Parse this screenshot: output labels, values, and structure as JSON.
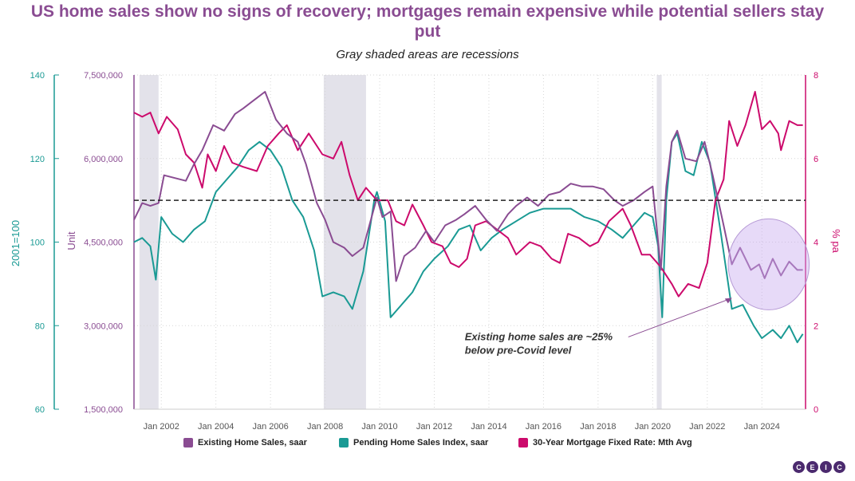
{
  "title": "US home sales show no signs of recovery; mortgages remain expensive while potential sellers stay put",
  "subtitle": "Gray shaded areas are recessions",
  "logo": [
    "C",
    "E",
    "I",
    "C"
  ],
  "chart_data": {
    "type": "line",
    "x_ticks": [
      "Jan 2002",
      "Jan 2004",
      "Jan 2006",
      "Jan 2008",
      "Jan 2010",
      "Jan 2012",
      "Jan 2014",
      "Jan 2016",
      "Jan 2018",
      "Jan 2020",
      "Jan 2022",
      "Jan 2024"
    ],
    "x_range": [
      2001.0,
      2025.6
    ],
    "axes": {
      "index": {
        "label": "2001=100",
        "ticks": [
          "60",
          "80",
          "100",
          "120",
          "140"
        ],
        "range": [
          60,
          140
        ],
        "color": "#1a9a94"
      },
      "unit": {
        "label": "Unit",
        "ticks": [
          "1,500,000",
          "3,000,000",
          "4,500,000",
          "6,000,000",
          "7,500,000"
        ],
        "range": [
          1500000,
          7500000
        ],
        "color": "#8a4c92"
      },
      "rate": {
        "label": "% pa",
        "ticks": [
          "0",
          "2",
          "4",
          "6",
          "8"
        ],
        "range": [
          0,
          8
        ],
        "color": "#cc0a6c"
      }
    },
    "recessions": [
      [
        2001.2,
        2001.9
      ],
      [
        2007.95,
        2009.5
      ],
      [
        2020.15,
        2020.33
      ]
    ],
    "reference_line": {
      "value": 5250000,
      "axis": "unit",
      "style": "dashed"
    },
    "series": [
      {
        "name": "Existing Home Sales, saar",
        "axis": "unit",
        "color": "#8a4c92",
        "points": [
          [
            2001.0,
            4900000
          ],
          [
            2001.3,
            5200000
          ],
          [
            2001.6,
            5150000
          ],
          [
            2001.9,
            5200000
          ],
          [
            2002.1,
            5700000
          ],
          [
            2002.5,
            5650000
          ],
          [
            2002.9,
            5600000
          ],
          [
            2003.2,
            5900000
          ],
          [
            2003.5,
            6150000
          ],
          [
            2003.9,
            6600000
          ],
          [
            2004.3,
            6500000
          ],
          [
            2004.7,
            6800000
          ],
          [
            2005.0,
            6900000
          ],
          [
            2005.4,
            7050000
          ],
          [
            2005.8,
            7200000
          ],
          [
            2006.2,
            6700000
          ],
          [
            2006.6,
            6450000
          ],
          [
            2007.0,
            6300000
          ],
          [
            2007.3,
            5900000
          ],
          [
            2007.7,
            5200000
          ],
          [
            2008.0,
            4900000
          ],
          [
            2008.3,
            4500000
          ],
          [
            2008.7,
            4400000
          ],
          [
            2009.0,
            4250000
          ],
          [
            2009.4,
            4400000
          ],
          [
            2009.9,
            5300000
          ],
          [
            2010.1,
            4950000
          ],
          [
            2010.4,
            5050000
          ],
          [
            2010.6,
            3800000
          ],
          [
            2010.9,
            4250000
          ],
          [
            2011.3,
            4400000
          ],
          [
            2011.7,
            4700000
          ],
          [
            2012.0,
            4500000
          ],
          [
            2012.4,
            4800000
          ],
          [
            2012.8,
            4900000
          ],
          [
            2013.1,
            5000000
          ],
          [
            2013.5,
            5150000
          ],
          [
            2013.9,
            4900000
          ],
          [
            2014.3,
            4700000
          ],
          [
            2014.7,
            5000000
          ],
          [
            2015.0,
            5150000
          ],
          [
            2015.4,
            5300000
          ],
          [
            2015.8,
            5150000
          ],
          [
            2016.2,
            5350000
          ],
          [
            2016.6,
            5400000
          ],
          [
            2017.0,
            5550000
          ],
          [
            2017.4,
            5500000
          ],
          [
            2017.8,
            5500000
          ],
          [
            2018.2,
            5450000
          ],
          [
            2018.6,
            5250000
          ],
          [
            2018.9,
            5150000
          ],
          [
            2019.3,
            5250000
          ],
          [
            2019.7,
            5400000
          ],
          [
            2020.0,
            5500000
          ],
          [
            2020.3,
            4000000
          ],
          [
            2020.5,
            5500000
          ],
          [
            2020.7,
            6300000
          ],
          [
            2020.9,
            6500000
          ],
          [
            2021.2,
            6000000
          ],
          [
            2021.6,
            5950000
          ],
          [
            2021.9,
            6300000
          ],
          [
            2022.2,
            5700000
          ],
          [
            2022.6,
            4800000
          ],
          [
            2022.9,
            4100000
          ],
          [
            2023.2,
            4400000
          ],
          [
            2023.6,
            4000000
          ],
          [
            2023.9,
            4100000
          ],
          [
            2024.1,
            3850000
          ],
          [
            2024.4,
            4200000
          ],
          [
            2024.7,
            3900000
          ],
          [
            2025.0,
            4150000
          ],
          [
            2025.3,
            4000000
          ],
          [
            2025.5,
            4000000
          ]
        ]
      },
      {
        "name": "Pending Home Sales Index, saar",
        "axis": "index",
        "color": "#1a9a94",
        "points": [
          [
            2001.0,
            100
          ],
          [
            2001.3,
            101
          ],
          [
            2001.6,
            99
          ],
          [
            2001.8,
            91
          ],
          [
            2002.0,
            106
          ],
          [
            2002.4,
            102
          ],
          [
            2002.8,
            100
          ],
          [
            2003.2,
            103
          ],
          [
            2003.6,
            105
          ],
          [
            2004.0,
            112
          ],
          [
            2004.4,
            115
          ],
          [
            2004.8,
            118
          ],
          [
            2005.2,
            122
          ],
          [
            2005.6,
            124
          ],
          [
            2006.0,
            122
          ],
          [
            2006.4,
            118
          ],
          [
            2006.8,
            110
          ],
          [
            2007.2,
            106
          ],
          [
            2007.6,
            98
          ],
          [
            2007.9,
            87
          ],
          [
            2008.3,
            88
          ],
          [
            2008.7,
            87
          ],
          [
            2009.0,
            84
          ],
          [
            2009.4,
            93
          ],
          [
            2009.8,
            110
          ],
          [
            2009.9,
            112
          ],
          [
            2010.2,
            105
          ],
          [
            2010.4,
            82
          ],
          [
            2010.8,
            85
          ],
          [
            2011.2,
            88
          ],
          [
            2011.6,
            93
          ],
          [
            2012.0,
            96
          ],
          [
            2012.5,
            99
          ],
          [
            2012.9,
            103
          ],
          [
            2013.3,
            104
          ],
          [
            2013.7,
            98
          ],
          [
            2014.1,
            101
          ],
          [
            2014.5,
            103
          ],
          [
            2015.0,
            105
          ],
          [
            2015.5,
            107
          ],
          [
            2016.0,
            108
          ],
          [
            2016.5,
            108
          ],
          [
            2017.0,
            108
          ],
          [
            2017.5,
            106
          ],
          [
            2018.0,
            105
          ],
          [
            2018.5,
            103
          ],
          [
            2018.9,
            101
          ],
          [
            2019.3,
            104
          ],
          [
            2019.7,
            107
          ],
          [
            2020.0,
            106
          ],
          [
            2020.2,
            99
          ],
          [
            2020.35,
            82
          ],
          [
            2020.5,
            110
          ],
          [
            2020.7,
            124
          ],
          [
            2020.9,
            126
          ],
          [
            2021.2,
            117
          ],
          [
            2021.5,
            116
          ],
          [
            2021.8,
            124
          ],
          [
            2022.1,
            119
          ],
          [
            2022.5,
            102
          ],
          [
            2022.9,
            84
          ],
          [
            2023.3,
            85
          ],
          [
            2023.7,
            80
          ],
          [
            2024.0,
            77
          ],
          [
            2024.4,
            79
          ],
          [
            2024.7,
            77
          ],
          [
            2025.0,
            80
          ],
          [
            2025.3,
            76
          ],
          [
            2025.5,
            78
          ]
        ]
      },
      {
        "name": "30-Year Mortgage Fixed Rate: Mth Avg",
        "axis": "rate",
        "color": "#cc0a6c",
        "points": [
          [
            2001.0,
            7.1
          ],
          [
            2001.3,
            7.0
          ],
          [
            2001.6,
            7.1
          ],
          [
            2001.9,
            6.6
          ],
          [
            2002.2,
            7.0
          ],
          [
            2002.6,
            6.7
          ],
          [
            2002.9,
            6.1
          ],
          [
            2003.2,
            5.9
          ],
          [
            2003.5,
            5.3
          ],
          [
            2003.7,
            6.1
          ],
          [
            2004.0,
            5.7
          ],
          [
            2004.3,
            6.3
          ],
          [
            2004.6,
            5.9
          ],
          [
            2005.0,
            5.8
          ],
          [
            2005.5,
            5.7
          ],
          [
            2005.9,
            6.3
          ],
          [
            2006.3,
            6.6
          ],
          [
            2006.6,
            6.8
          ],
          [
            2007.0,
            6.2
          ],
          [
            2007.4,
            6.6
          ],
          [
            2007.9,
            6.1
          ],
          [
            2008.3,
            6.0
          ],
          [
            2008.6,
            6.4
          ],
          [
            2008.9,
            5.6
          ],
          [
            2009.2,
            5.0
          ],
          [
            2009.5,
            5.3
          ],
          [
            2009.9,
            5.0
          ],
          [
            2010.3,
            5.0
          ],
          [
            2010.6,
            4.5
          ],
          [
            2010.9,
            4.4
          ],
          [
            2011.2,
            4.9
          ],
          [
            2011.6,
            4.4
          ],
          [
            2011.9,
            4.0
          ],
          [
            2012.3,
            3.9
          ],
          [
            2012.6,
            3.5
          ],
          [
            2012.9,
            3.4
          ],
          [
            2013.2,
            3.6
          ],
          [
            2013.5,
            4.4
          ],
          [
            2013.9,
            4.5
          ],
          [
            2014.3,
            4.3
          ],
          [
            2014.7,
            4.1
          ],
          [
            2015.0,
            3.7
          ],
          [
            2015.5,
            4.0
          ],
          [
            2015.9,
            3.9
          ],
          [
            2016.3,
            3.6
          ],
          [
            2016.6,
            3.5
          ],
          [
            2016.9,
            4.2
          ],
          [
            2017.3,
            4.1
          ],
          [
            2017.7,
            3.9
          ],
          [
            2018.0,
            4.0
          ],
          [
            2018.4,
            4.5
          ],
          [
            2018.9,
            4.8
          ],
          [
            2019.2,
            4.4
          ],
          [
            2019.6,
            3.7
          ],
          [
            2019.9,
            3.7
          ],
          [
            2020.3,
            3.4
          ],
          [
            2020.7,
            3.0
          ],
          [
            2020.95,
            2.7
          ],
          [
            2021.3,
            3.0
          ],
          [
            2021.7,
            2.9
          ],
          [
            2022.0,
            3.5
          ],
          [
            2022.3,
            5.0
          ],
          [
            2022.6,
            5.5
          ],
          [
            2022.8,
            6.9
          ],
          [
            2023.1,
            6.3
          ],
          [
            2023.4,
            6.8
          ],
          [
            2023.75,
            7.6
          ],
          [
            2024.0,
            6.7
          ],
          [
            2024.3,
            6.9
          ],
          [
            2024.6,
            6.6
          ],
          [
            2024.7,
            6.2
          ],
          [
            2025.0,
            6.9
          ],
          [
            2025.3,
            6.8
          ],
          [
            2025.5,
            6.8
          ]
        ]
      }
    ],
    "annotation": {
      "text_line1": "Existing home sales are ~25%",
      "text_line2": "below pre-Covid level",
      "highlight_range": [
        2023.0,
        2025.5
      ]
    },
    "legend_position": "bottom"
  }
}
